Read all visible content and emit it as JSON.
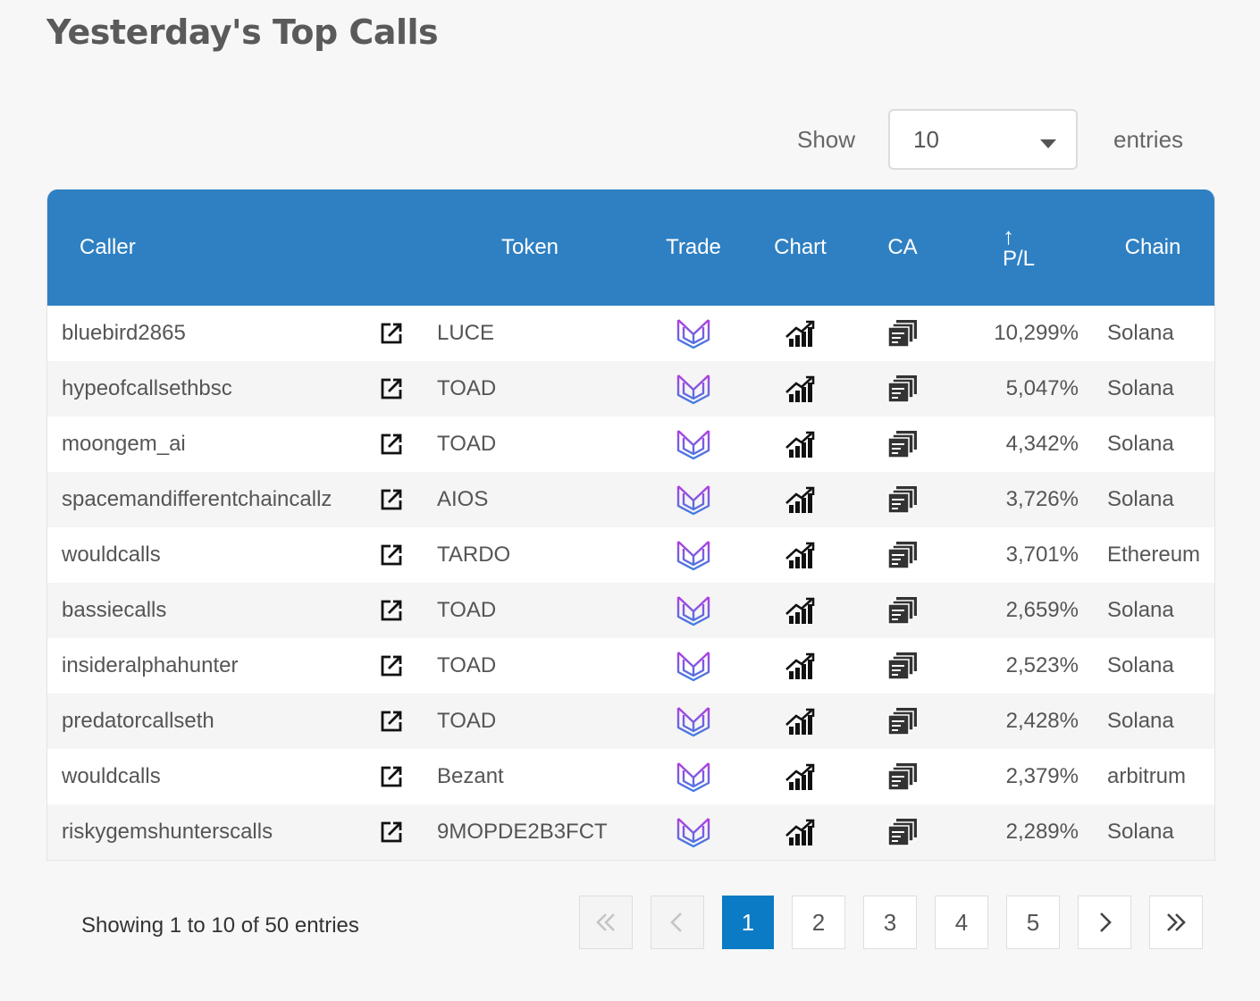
{
  "page": {
    "title": "Yesterday's Top Calls"
  },
  "length_control": {
    "show_label": "Show",
    "selected": "10",
    "entries_label": "entries"
  },
  "table": {
    "headers": {
      "caller": "Caller",
      "token": "Token",
      "trade": "Trade",
      "chart": "Chart",
      "ca": "CA",
      "pl_sort_icon": "↑",
      "pl": "P/L",
      "chain": "Chain"
    },
    "rows": [
      {
        "caller": "bluebird2865",
        "token": "LUCE",
        "pl": "10,299%",
        "chain": "Solana"
      },
      {
        "caller": "hypeofcallsethbsc",
        "token": "TOAD",
        "pl": "5,047%",
        "chain": "Solana"
      },
      {
        "caller": "moongem_ai",
        "token": "TOAD",
        "pl": "4,342%",
        "chain": "Solana"
      },
      {
        "caller": "spacemandifferentchaincallz",
        "token": "AIOS",
        "pl": "3,726%",
        "chain": "Solana"
      },
      {
        "caller": "wouldcalls",
        "token": "TARDO",
        "pl": "3,701%",
        "chain": "Ethereum"
      },
      {
        "caller": "bassiecalls",
        "token": "TOAD",
        "pl": "2,659%",
        "chain": "Solana"
      },
      {
        "caller": "insideralphahunter",
        "token": "TOAD",
        "pl": "2,523%",
        "chain": "Solana"
      },
      {
        "caller": "predatorcallseth",
        "token": "TOAD",
        "pl": "2,428%",
        "chain": "Solana"
      },
      {
        "caller": "wouldcalls",
        "token": "Bezant",
        "pl": "2,379%",
        "chain": "arbitrum"
      },
      {
        "caller": "riskygemshunterscalls",
        "token": "9MOPDE2B3FCT",
        "pl": "2,289%",
        "chain": "Solana"
      }
    ],
    "row_icons": {
      "link": "external-link-icon",
      "trade": "trade-logo-icon",
      "chart": "chart-up-icon",
      "ca": "copy-icon"
    },
    "colors": {
      "header_bg": "#2f80c2",
      "trade_logo_top": "#b23fe0",
      "trade_logo_bottom": "#3f7de0"
    }
  },
  "footer": {
    "info": "Showing 1 to 10 of 50 entries",
    "pagination": {
      "first": "«",
      "prev": "‹",
      "pages": [
        "1",
        "2",
        "3",
        "4",
        "5"
      ],
      "active_page": "1",
      "next": "›",
      "last": "»"
    },
    "active_color": "#0a7bc4"
  }
}
